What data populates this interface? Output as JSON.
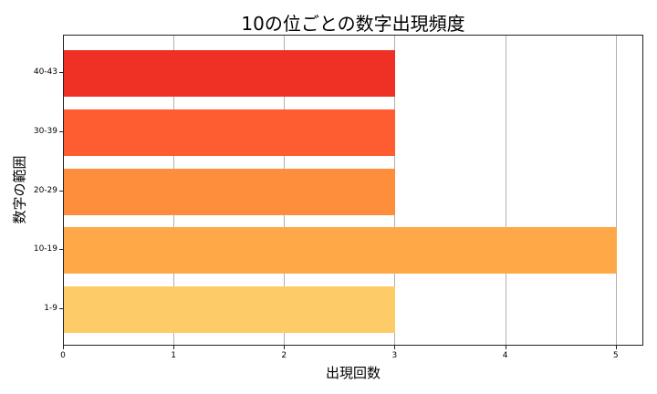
{
  "chart_data": {
    "type": "bar",
    "orientation": "horizontal",
    "title": "10の位ごとの数字出現頻度",
    "xlabel": "出現回数",
    "ylabel": "数字の範囲",
    "categories": [
      "1-9",
      "10-19",
      "20-29",
      "30-39",
      "40-43"
    ],
    "values": [
      3,
      5,
      3,
      3,
      3
    ],
    "colors": [
      "#FECC66",
      "#FEA848",
      "#FE8E3C",
      "#FE5C31",
      "#EE3124"
    ],
    "xlim": [
      0,
      5.25
    ],
    "xticks": [
      "0",
      "1",
      "2",
      "3",
      "4",
      "5"
    ],
    "grid": {
      "x": true,
      "y": false
    },
    "legend": null
  }
}
